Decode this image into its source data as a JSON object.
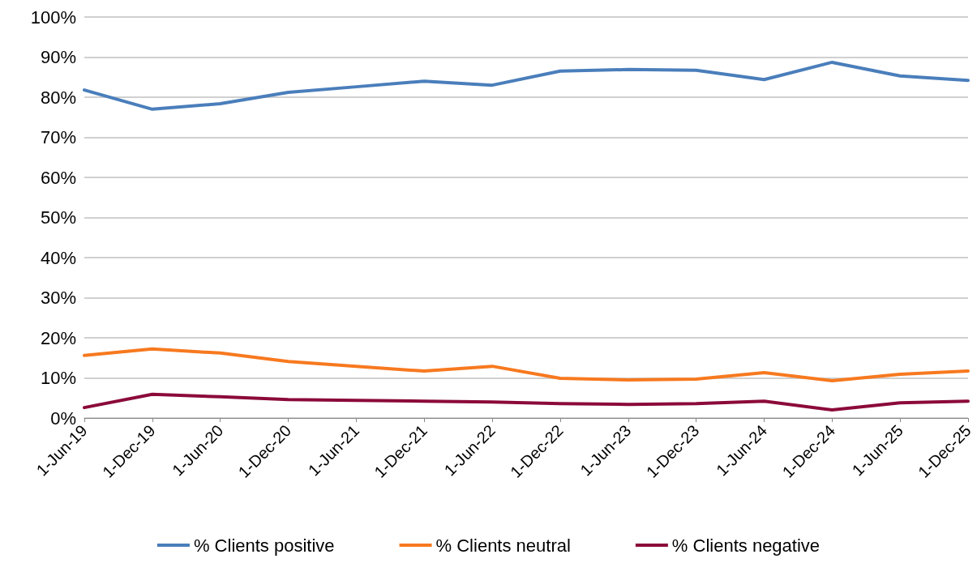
{
  "chart_data": {
    "type": "line",
    "categories": [
      "1-Jun-19",
      "1-Dec-19",
      "1-Jun-20",
      "1-Dec-20",
      "1-Jun-21",
      "1-Dec-21",
      "1-Jun-22",
      "1-Dec-22",
      "1-Jun-23",
      "1-Dec-23",
      "1-Jun-24",
      "1-Dec-24",
      "1-Jun-25",
      "1-Dec-25"
    ],
    "series": [
      {
        "name": "% Clients positive",
        "color": "#4a7ebb",
        "values": [
          81.8,
          77.0,
          78.4,
          81.2,
          82.6,
          84.0,
          83.0,
          86.5,
          86.9,
          86.7,
          84.4,
          88.7,
          85.3,
          84.2
        ]
      },
      {
        "name": "% Clients neutral",
        "color": "#f7791f",
        "values": [
          15.6,
          17.2,
          16.2,
          14.1,
          12.9,
          11.7,
          12.9,
          9.9,
          9.5,
          9.7,
          11.3,
          9.3,
          10.9,
          11.7
        ]
      },
      {
        "name": "% Clients negative",
        "color": "#8b0a3a",
        "values": [
          2.6,
          5.9,
          5.3,
          4.6,
          4.4,
          4.2,
          4.0,
          3.6,
          3.4,
          3.6,
          4.2,
          2.0,
          3.8,
          4.2
        ]
      }
    ],
    "ylim": [
      0,
      100
    ],
    "yticks": [
      {
        "value": 0,
        "label": "0%"
      },
      {
        "value": 10,
        "label": "10%"
      },
      {
        "value": 20,
        "label": "20%"
      },
      {
        "value": 30,
        "label": "30%"
      },
      {
        "value": 40,
        "label": "40%"
      },
      {
        "value": 50,
        "label": "50%"
      },
      {
        "value": 60,
        "label": "60%"
      },
      {
        "value": 70,
        "label": "70%"
      },
      {
        "value": 80,
        "label": "80%"
      },
      {
        "value": 90,
        "label": "90%"
      },
      {
        "value": 100,
        "label": "100%"
      }
    ],
    "grid": "y",
    "legend": "bottom",
    "marker": "none",
    "line_style": "solid"
  }
}
